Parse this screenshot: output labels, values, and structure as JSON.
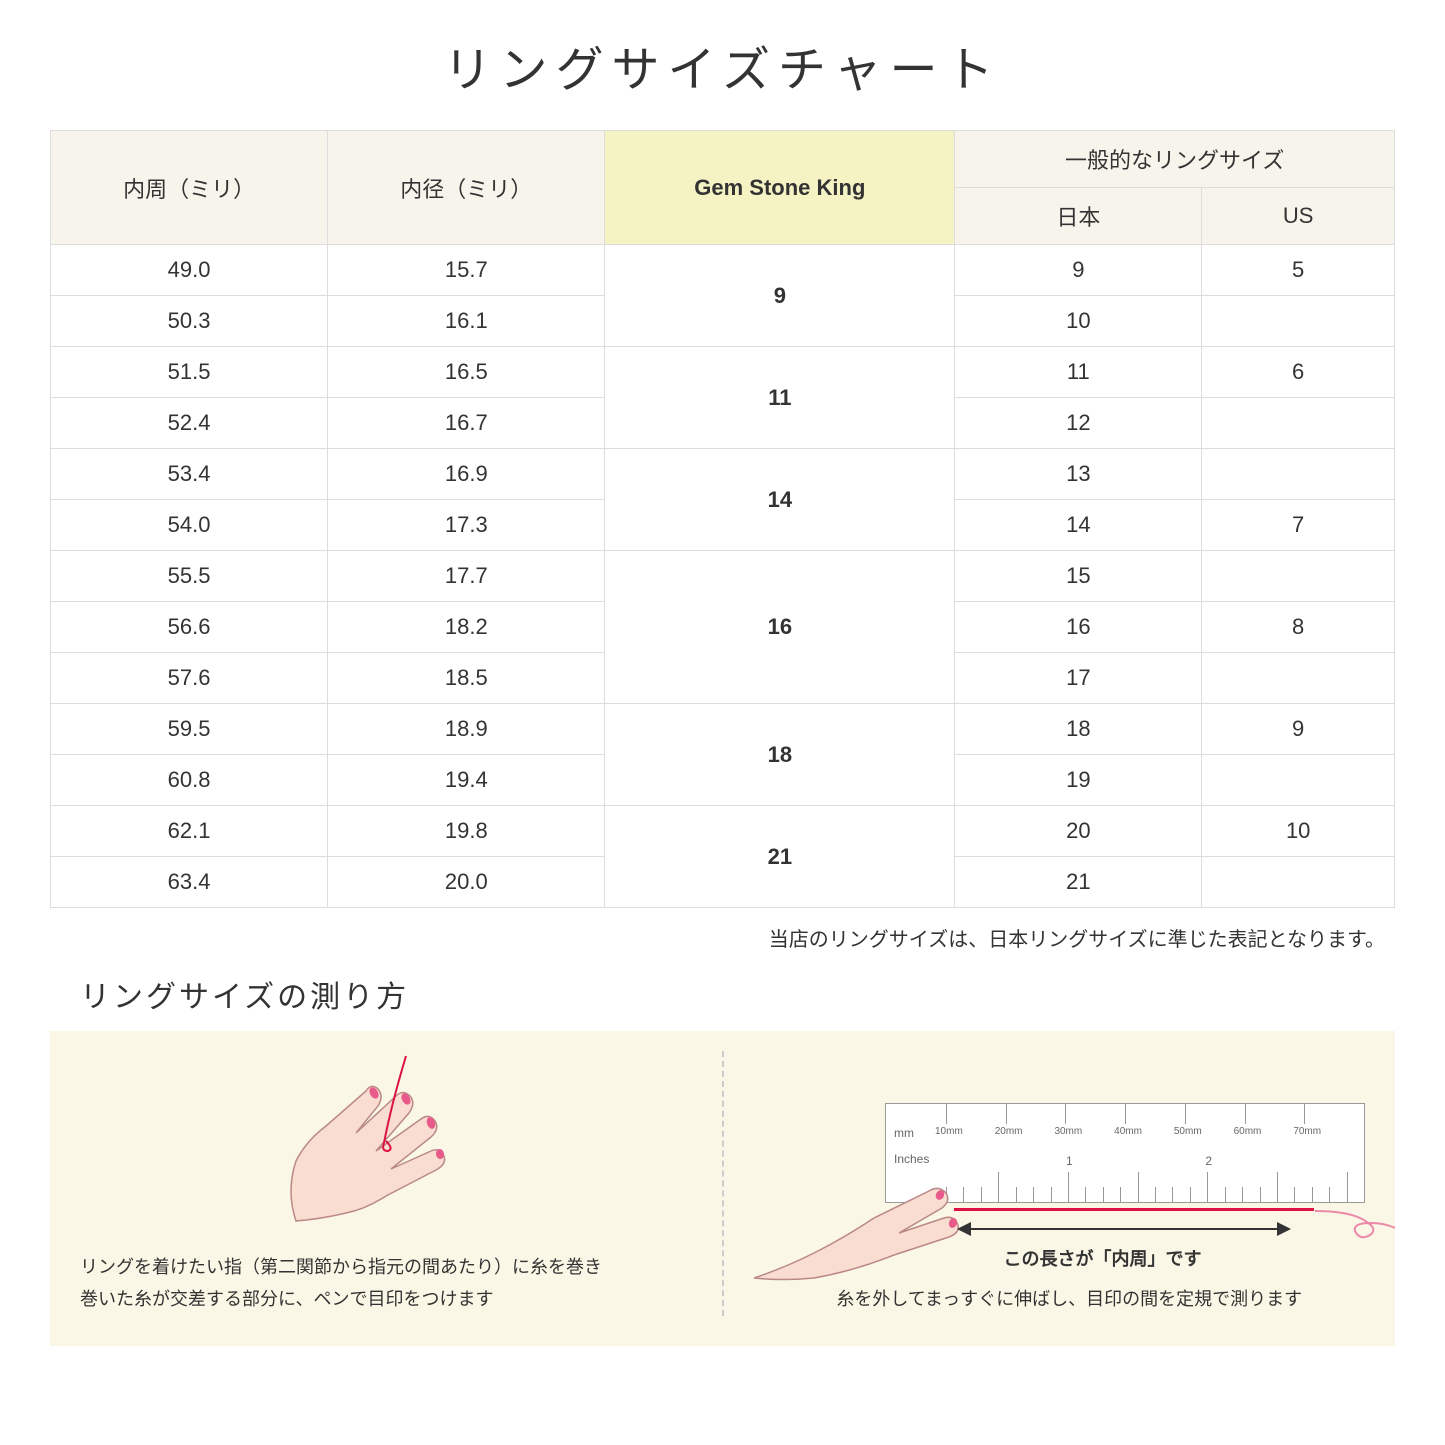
{
  "title": "リングサイズチャート",
  "table": {
    "headers": {
      "circumference": "内周（ミリ）",
      "diameter": "内径（ミリ）",
      "gsk": "Gem Stone King",
      "general": "一般的なリングサイズ",
      "japan": "日本",
      "us": "US"
    },
    "groups": [
      {
        "gsk": "9",
        "rows": [
          {
            "c": "49.0",
            "d": "15.7",
            "jp": "9",
            "us": "5"
          },
          {
            "c": "50.3",
            "d": "16.1",
            "jp": "10",
            "us": ""
          }
        ]
      },
      {
        "gsk": "11",
        "rows": [
          {
            "c": "51.5",
            "d": "16.5",
            "jp": "11",
            "us": "6"
          },
          {
            "c": "52.4",
            "d": "16.7",
            "jp": "12",
            "us": ""
          }
        ]
      },
      {
        "gsk": "14",
        "rows": [
          {
            "c": "53.4",
            "d": "16.9",
            "jp": "13",
            "us": ""
          },
          {
            "c": "54.0",
            "d": "17.3",
            "jp": "14",
            "us": "7"
          }
        ]
      },
      {
        "gsk": "16",
        "rows": [
          {
            "c": "55.5",
            "d": "17.7",
            "jp": "15",
            "us": ""
          },
          {
            "c": "56.6",
            "d": "18.2",
            "jp": "16",
            "us": "8"
          },
          {
            "c": "57.6",
            "d": "18.5",
            "jp": "17",
            "us": ""
          }
        ]
      },
      {
        "gsk": "18",
        "rows": [
          {
            "c": "59.5",
            "d": "18.9",
            "jp": "18",
            "us": "9"
          },
          {
            "c": "60.8",
            "d": "19.4",
            "jp": "19",
            "us": ""
          }
        ]
      },
      {
        "gsk": "21",
        "rows": [
          {
            "c": "62.1",
            "d": "19.8",
            "jp": "20",
            "us": "10"
          },
          {
            "c": "63.4",
            "d": "20.0",
            "jp": "21",
            "us": ""
          }
        ]
      }
    ]
  },
  "note": "当店のリングサイズは、日本リングサイズに準じた表記となります。",
  "howto": {
    "title": "リングサイズの測り方",
    "left_text": "リングを着けたい指（第二関節から指元の間あたり）に糸を巻き\n巻いた糸が交差する部分に、ペンで目印をつけます",
    "right_text": "糸を外してまっすぐに伸ばし、目印の間を定規で測ります",
    "arrow_label": "この長さが「内周」です"
  },
  "ruler": {
    "mm_label": "mm",
    "inches_label": "Inches",
    "mm_ticks": [
      "10mm",
      "20mm",
      "30mm",
      "40mm",
      "50mm",
      "60mm",
      "70mm"
    ],
    "inch_ticks": [
      "1",
      "2"
    ]
  },
  "colors": {
    "header_bg": "#f7f4ec",
    "highlight_bg": "#f5f2c4",
    "instruction_bg": "#faf7e6",
    "thread": "#d14",
    "hand_fill": "#f8ddd0",
    "hand_stroke": "#b88",
    "nail": "#e85a8a",
    "border": "#ddd"
  }
}
